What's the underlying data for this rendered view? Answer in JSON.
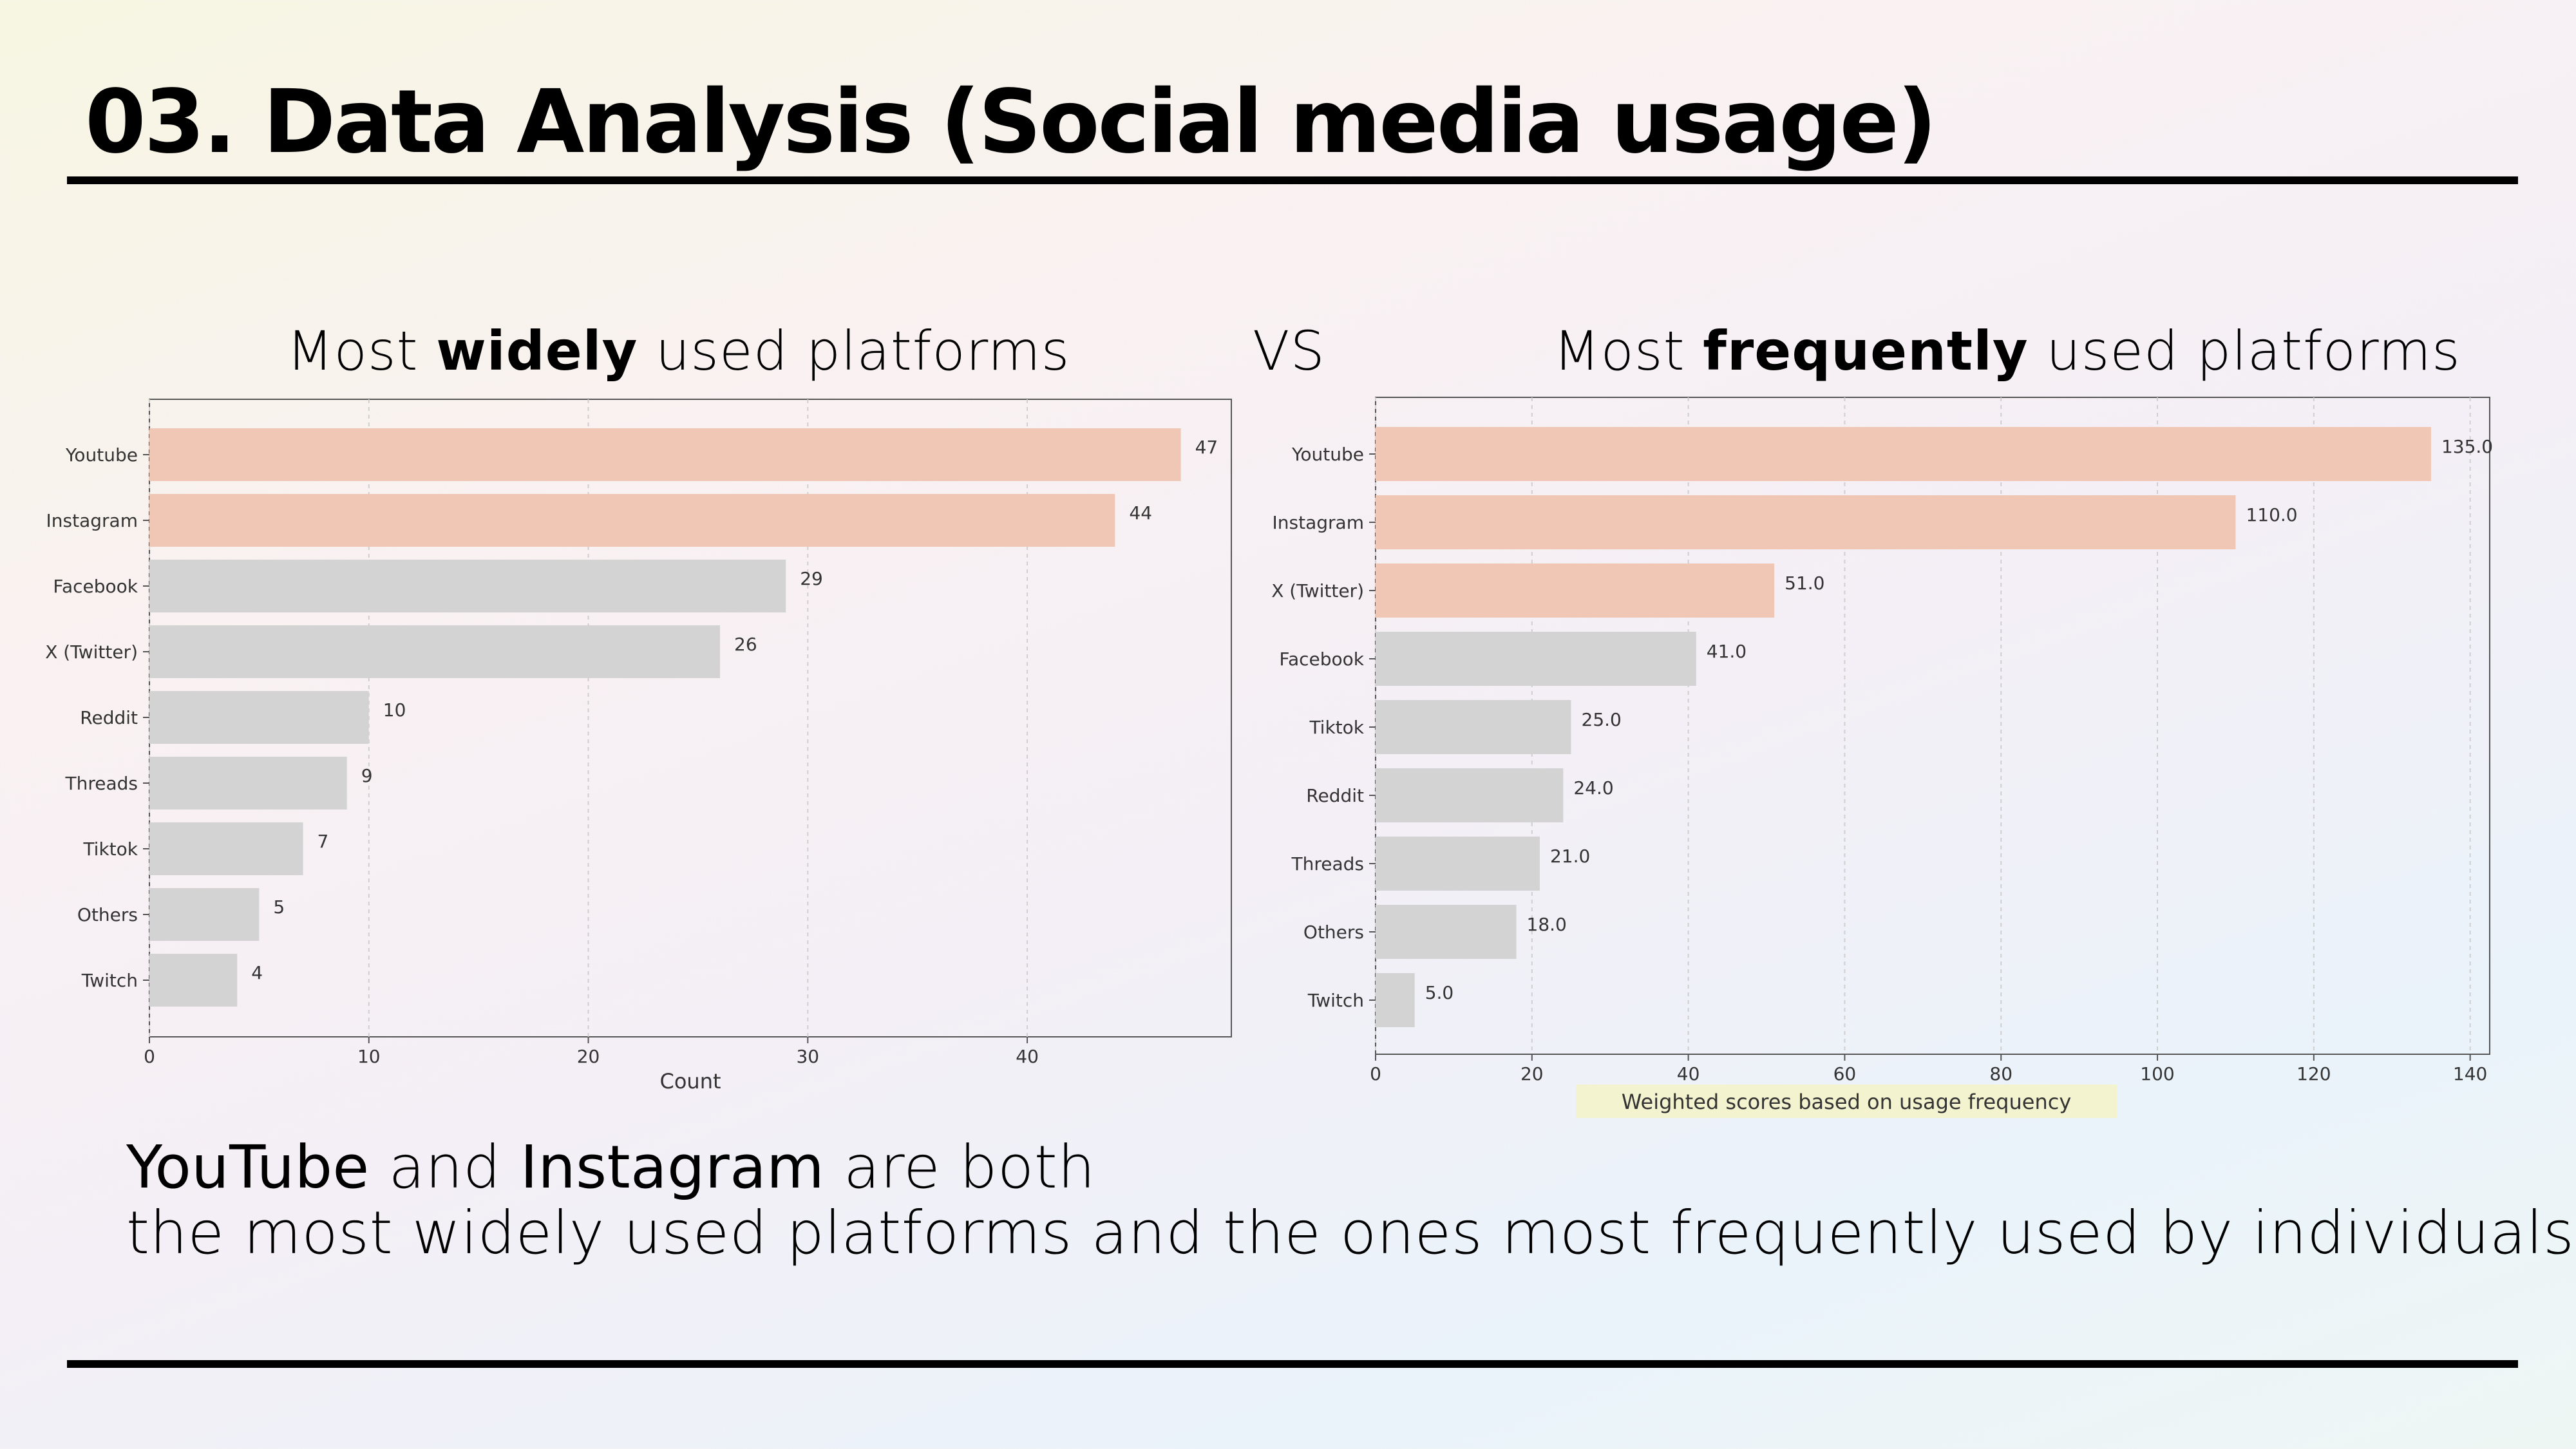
{
  "page": {
    "title": "03. Data Analysis (Social media usage)",
    "vs_label": "VS"
  },
  "headings": {
    "left": {
      "prefix": "Most ",
      "emphasis": "widely",
      "suffix": " used platforms"
    },
    "right": {
      "prefix": "Most ",
      "emphasis": "frequently",
      "suffix": " used platforms"
    }
  },
  "summary": {
    "line1_a": "YouTube",
    "line1_b": " and ",
    "line1_c": "Instagram",
    "line1_d": " are both",
    "line2": "the most widely used platforms and the ones most frequently used by individuals."
  },
  "colors": {
    "highlight": "#f0c6b5",
    "normal": "#d3d3d3",
    "text": "#333333",
    "xlabel_bg": "#f3f3cf"
  },
  "chart_data": [
    {
      "type": "bar",
      "orientation": "horizontal",
      "title": "Most widely used platforms",
      "categories": [
        "Youtube",
        "Instagram",
        "Facebook",
        "X (Twitter)",
        "Reddit",
        "Threads",
        "Tiktok",
        "Others",
        "Twitch"
      ],
      "values": [
        47,
        44,
        29,
        26,
        10,
        9,
        7,
        5,
        4
      ],
      "value_labels": [
        "47",
        "44",
        "29",
        "26",
        "10",
        "9",
        "7",
        "5",
        "4"
      ],
      "highlighted": [
        true,
        true,
        false,
        false,
        false,
        false,
        false,
        false,
        false
      ],
      "xlabel": "Count",
      "ylabel": "",
      "xlim": [
        0,
        49.3
      ],
      "xticks": [
        0,
        10,
        20,
        30,
        40
      ],
      "grid": "x"
    },
    {
      "type": "bar",
      "orientation": "horizontal",
      "title": "Most frequently used platforms",
      "categories": [
        "Youtube",
        "Instagram",
        "X (Twitter)",
        "Facebook",
        "Tiktok",
        "Reddit",
        "Threads",
        "Others",
        "Twitch"
      ],
      "values": [
        135.0,
        110.0,
        51.0,
        41.0,
        25.0,
        24.0,
        21.0,
        18.0,
        5.0
      ],
      "value_labels": [
        "135.0",
        "110.0",
        "51.0",
        "41.0",
        "25.0",
        "24.0",
        "21.0",
        "18.0",
        "5.0"
      ],
      "highlighted": [
        true,
        true,
        true,
        false,
        false,
        false,
        false,
        false,
        false
      ],
      "xlabel": "Weighted scores based on usage frequency",
      "ylabel": "",
      "xlim": [
        0,
        142.5
      ],
      "xticks": [
        0,
        20,
        40,
        60,
        80,
        100,
        120,
        140
      ],
      "grid": "x"
    }
  ]
}
